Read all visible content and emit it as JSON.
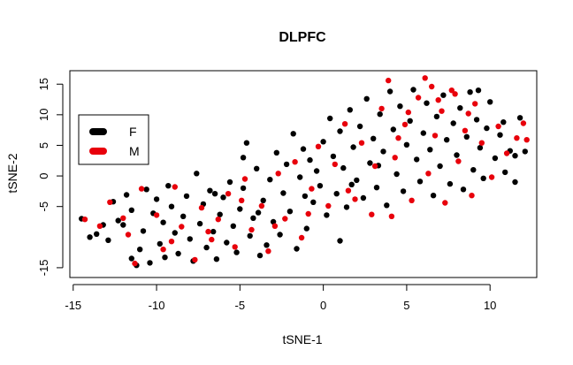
{
  "chart_data": {
    "type": "scatter",
    "title": "DLPFC",
    "xlabel": "tSNE-1",
    "ylabel": "tSNE-2",
    "xlim": [
      -15.2,
      12.8
    ],
    "ylim": [
      -16.6,
      17.2
    ],
    "x_ticks": [
      -15,
      -10,
      -5,
      0,
      5,
      10
    ],
    "y_ticks": [
      -15,
      -5,
      0,
      5,
      10,
      15
    ],
    "x_tick_labels": [
      "-15",
      "-10",
      "-5",
      "0",
      "5",
      "10"
    ],
    "y_tick_labels": [
      "-15",
      "-5",
      "0",
      "5",
      "10",
      "15"
    ],
    "grid": false,
    "legend_position": "top-left",
    "legend": [
      {
        "label": "F",
        "color": "#000000"
      },
      {
        "label": "M",
        "color": "#e8000b"
      }
    ],
    "series": [
      {
        "name": "F",
        "color": "#000000",
        "points": [
          [
            -14.5,
            -7.0
          ],
          [
            -14.0,
            -10.0
          ],
          [
            -13.6,
            -9.5
          ],
          [
            -13.2,
            -8.0
          ],
          [
            -12.9,
            -10.5
          ],
          [
            -12.6,
            -4.2
          ],
          [
            -12.3,
            -7.3
          ],
          [
            -12.0,
            -8.0
          ],
          [
            -11.8,
            -3.1
          ],
          [
            -11.5,
            -5.6
          ],
          [
            -11.5,
            -13.5
          ],
          [
            -11.2,
            -14.6
          ],
          [
            -11.0,
            -12.0
          ],
          [
            -10.8,
            -9.0
          ],
          [
            -10.6,
            -2.2
          ],
          [
            -10.4,
            -14.2
          ],
          [
            -10.2,
            -6.1
          ],
          [
            -10.0,
            -3.8
          ],
          [
            -9.8,
            -11.1
          ],
          [
            -9.6,
            -7.6
          ],
          [
            -9.5,
            -13.3
          ],
          [
            -9.3,
            -1.6
          ],
          [
            -9.1,
            -5.0
          ],
          [
            -8.9,
            -9.3
          ],
          [
            -8.7,
            -12.7
          ],
          [
            -8.4,
            -6.6
          ],
          [
            -8.2,
            -3.3
          ],
          [
            -8.0,
            -10.3
          ],
          [
            -7.8,
            -13.9
          ],
          [
            -7.6,
            0.4
          ],
          [
            -7.4,
            -7.8
          ],
          [
            -7.2,
            -4.6
          ],
          [
            -7.0,
            -11.7
          ],
          [
            -6.8,
            -2.4
          ],
          [
            -6.6,
            -9.1
          ],
          [
            -6.4,
            -13.6
          ],
          [
            -6.2,
            -6.3
          ],
          [
            -6.0,
            -3.5
          ],
          [
            -5.8,
            -10.9
          ],
          [
            -5.6,
            -1.0
          ],
          [
            -5.4,
            -8.2
          ],
          [
            -5.2,
            -12.5
          ],
          [
            -5.0,
            -5.4
          ],
          [
            -4.8,
            3.0
          ],
          [
            -4.8,
            -2.0
          ],
          [
            -4.6,
            5.4
          ],
          [
            -4.4,
            -9.8
          ],
          [
            -4.2,
            -6.9
          ],
          [
            -4.0,
            1.2
          ],
          [
            -3.8,
            -13.0
          ],
          [
            -3.6,
            -4.0
          ],
          [
            -3.4,
            -11.3
          ],
          [
            -3.2,
            -0.6
          ],
          [
            -3.0,
            -7.5
          ],
          [
            -2.8,
            3.8
          ],
          [
            -2.6,
            -9.6
          ],
          [
            -2.4,
            -2.8
          ],
          [
            -2.2,
            1.9
          ],
          [
            -2.0,
            -5.8
          ],
          [
            -1.8,
            6.9
          ],
          [
            -1.6,
            -11.9
          ],
          [
            -1.4,
            -0.2
          ],
          [
            -1.2,
            4.4
          ],
          [
            -1.0,
            -8.6
          ],
          [
            -0.8,
            2.6
          ],
          [
            -0.6,
            -4.3
          ],
          [
            -0.4,
            0.8
          ],
          [
            -0.2,
            -1.6
          ],
          [
            0.0,
            5.6
          ],
          [
            0.2,
            -6.4
          ],
          [
            0.4,
            9.4
          ],
          [
            0.6,
            3.2
          ],
          [
            0.8,
            -2.9
          ],
          [
            1.0,
            7.3
          ],
          [
            1.0,
            -10.6
          ],
          [
            1.2,
            1.3
          ],
          [
            1.4,
            -5.1
          ],
          [
            1.6,
            10.8
          ],
          [
            1.8,
            4.7
          ],
          [
            2.0,
            -0.7
          ],
          [
            2.2,
            8.1
          ],
          [
            2.4,
            -3.6
          ],
          [
            2.6,
            12.6
          ],
          [
            2.8,
            2.1
          ],
          [
            3.0,
            6.1
          ],
          [
            3.2,
            -1.9
          ],
          [
            3.4,
            10.1
          ],
          [
            3.6,
            4.0
          ],
          [
            3.8,
            -4.8
          ],
          [
            4.0,
            13.8
          ],
          [
            4.2,
            7.6
          ],
          [
            4.4,
            0.3
          ],
          [
            4.6,
            11.4
          ],
          [
            4.8,
            -2.5
          ],
          [
            5.0,
            5.1
          ],
          [
            5.2,
            9.0
          ],
          [
            5.4,
            14.1
          ],
          [
            5.6,
            2.7
          ],
          [
            5.8,
            -0.9
          ],
          [
            6.0,
            7.0
          ],
          [
            6.2,
            11.9
          ],
          [
            6.4,
            4.3
          ],
          [
            6.6,
            -3.2
          ],
          [
            6.8,
            9.7
          ],
          [
            7.0,
            1.6
          ],
          [
            7.2,
            13.2
          ],
          [
            7.4,
            5.9
          ],
          [
            7.6,
            -1.3
          ],
          [
            7.8,
            8.6
          ],
          [
            8.0,
            3.4
          ],
          [
            8.2,
            11.1
          ],
          [
            8.4,
            -2.2
          ],
          [
            8.6,
            6.4
          ],
          [
            8.8,
            13.7
          ],
          [
            9.0,
            1.0
          ],
          [
            9.2,
            9.2
          ],
          [
            9.4,
            4.6
          ],
          [
            9.6,
            -0.4
          ],
          [
            9.8,
            7.8
          ],
          [
            10.0,
            12.1
          ],
          [
            10.3,
            2.9
          ],
          [
            10.6,
            6.7
          ],
          [
            10.9,
            0.6
          ],
          [
            11.2,
            4.1
          ],
          [
            11.5,
            -1.0
          ],
          [
            11.8,
            9.5
          ],
          [
            12.1,
            4.0
          ],
          [
            11.5,
            3.3
          ],
          [
            10.8,
            8.8
          ],
          [
            9.3,
            14.0
          ],
          [
            -6.5,
            -2.9
          ],
          [
            -3.9,
            -6.0
          ],
          [
            -1.1,
            -3.3
          ],
          [
            1.7,
            -1.4
          ],
          [
            3.3,
            1.7
          ]
        ]
      },
      {
        "name": "M",
        "color": "#e8000b",
        "points": [
          [
            -14.3,
            -7.1
          ],
          [
            -13.4,
            -8.2
          ],
          [
            -12.8,
            -4.3
          ],
          [
            -11.7,
            -9.6
          ],
          [
            -11.3,
            -14.3
          ],
          [
            -10.9,
            -2.1
          ],
          [
            -10.0,
            -6.4
          ],
          [
            -9.6,
            -12.0
          ],
          [
            -8.9,
            -1.8
          ],
          [
            -8.5,
            -8.3
          ],
          [
            -7.7,
            -13.7
          ],
          [
            -7.3,
            -5.2
          ],
          [
            -6.7,
            -10.4
          ],
          [
            -6.3,
            -7.1
          ],
          [
            -5.7,
            -2.9
          ],
          [
            -5.3,
            -11.6
          ],
          [
            -4.7,
            -0.5
          ],
          [
            -4.3,
            -8.8
          ],
          [
            -3.7,
            -4.9
          ],
          [
            -3.3,
            -12.3
          ],
          [
            -2.7,
            0.4
          ],
          [
            -2.3,
            -7.0
          ],
          [
            -1.7,
            2.3
          ],
          [
            -1.3,
            -10.1
          ],
          [
            -0.7,
            -2.1
          ],
          [
            -0.3,
            4.8
          ],
          [
            0.3,
            -4.9
          ],
          [
            0.7,
            1.9
          ],
          [
            1.3,
            8.5
          ],
          [
            1.9,
            -3.8
          ],
          [
            2.3,
            5.4
          ],
          [
            2.9,
            -6.3
          ],
          [
            3.5,
            11.0
          ],
          [
            3.9,
            15.6
          ],
          [
            4.1,
            -6.6
          ],
          [
            4.3,
            3.0
          ],
          [
            4.9,
            8.4
          ],
          [
            5.3,
            -4.0
          ],
          [
            5.7,
            12.8
          ],
          [
            6.1,
            16.0
          ],
          [
            6.3,
            0.4
          ],
          [
            6.7,
            6.6
          ],
          [
            7.1,
            10.6
          ],
          [
            7.3,
            -4.4
          ],
          [
            7.7,
            14.0
          ],
          [
            8.1,
            2.4
          ],
          [
            8.5,
            7.4
          ],
          [
            8.9,
            -3.2
          ],
          [
            9.1,
            11.8
          ],
          [
            9.5,
            5.4
          ],
          [
            10.1,
            -0.2
          ],
          [
            10.5,
            8.1
          ],
          [
            11.0,
            3.7
          ],
          [
            11.6,
            6.2
          ],
          [
            12.0,
            8.6
          ],
          [
            12.2,
            5.9
          ],
          [
            7.9,
            13.4
          ],
          [
            6.9,
            12.4
          ],
          [
            5.1,
            10.4
          ],
          [
            4.5,
            6.2
          ],
          [
            3.1,
            1.6
          ],
          [
            1.5,
            -2.4
          ],
          [
            -0.9,
            -6.2
          ],
          [
            -2.9,
            -8.2
          ],
          [
            -4.9,
            -4.0
          ],
          [
            -6.9,
            -9.1
          ],
          [
            -9.1,
            -10.7
          ],
          [
            -12.0,
            -6.9
          ],
          [
            8.7,
            10.2
          ],
          [
            6.5,
            14.6
          ]
        ]
      }
    ]
  }
}
